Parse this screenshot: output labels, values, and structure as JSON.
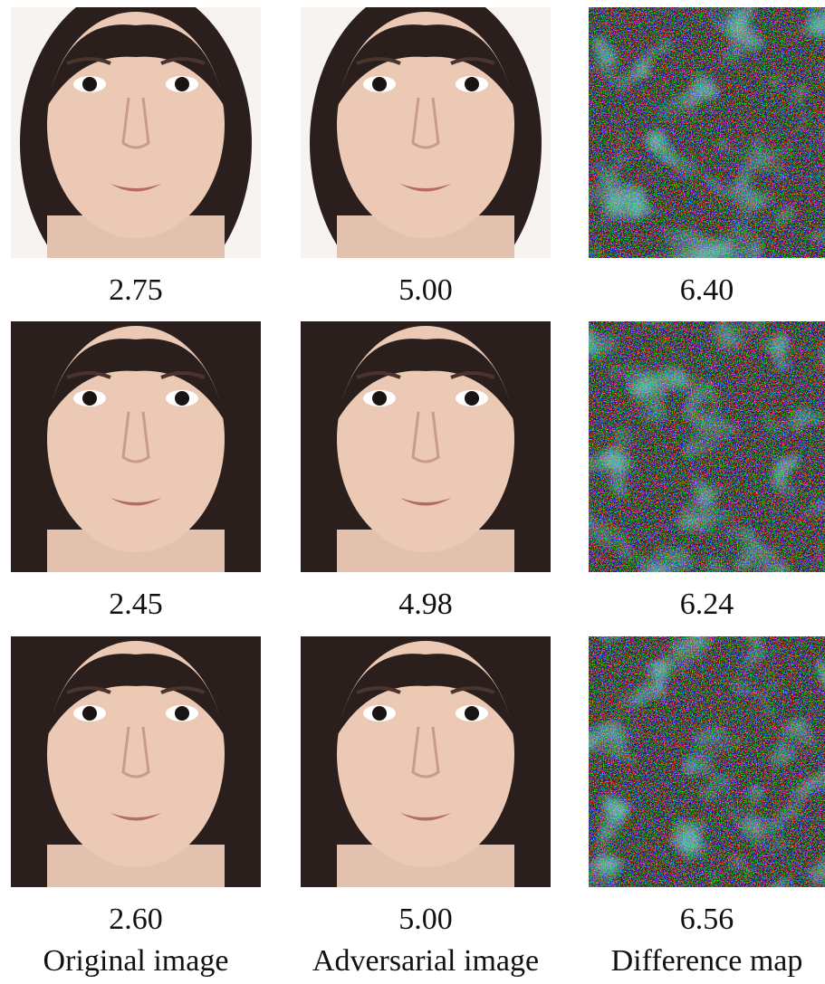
{
  "figure": {
    "rows": [
      {
        "scores": [
          "2.75",
          "5.00",
          "6.40"
        ]
      },
      {
        "scores": [
          "2.45",
          "4.98",
          "6.24"
        ]
      },
      {
        "scores": [
          "2.60",
          "5.00",
          "6.56"
        ]
      }
    ],
    "column_labels": [
      "Original image",
      "Adversarial image",
      "Difference map"
    ]
  }
}
